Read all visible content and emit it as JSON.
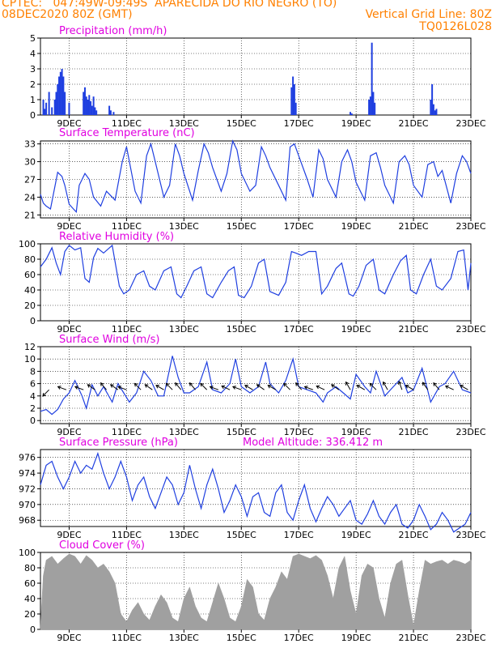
{
  "header": {
    "line1_left": "CPTEC:   047:49W-09:49S  APARECIDA DO RIO NEGRO (TO)",
    "line2_left": "08DEC2020 80Z (GMT)",
    "line2_right": "Vertical Grid Line: 80Z",
    "line3_right": "TQ0126L028"
  },
  "colors": {
    "header": "#ff8000",
    "title": "#e000e0",
    "series": "#1f3fe0",
    "cloud": "#a0a0a0"
  },
  "x_axis": {
    "start_day": 8.0,
    "end_day": 23.0,
    "tick_days": [
      9,
      11,
      13,
      15,
      17,
      19,
      21,
      23
    ],
    "tick_labels": [
      "9DEC",
      "11DEC",
      "13DEC",
      "15DEC",
      "17DEC",
      "19DEC",
      "21DEC",
      "23DEC"
    ]
  },
  "chart_data": [
    {
      "id": "precip",
      "type": "bar",
      "title": "Precipitation  (mm/h)",
      "ylim": [
        0,
        5
      ],
      "yticks": [
        0,
        1,
        2,
        3,
        4,
        5
      ],
      "x_days": [
        8.1,
        8.15,
        8.2,
        8.3,
        8.4,
        8.5,
        8.55,
        8.6,
        8.65,
        8.7,
        8.75,
        8.8,
        8.85,
        9.0,
        9.5,
        9.55,
        9.6,
        9.65,
        9.7,
        9.75,
        9.8,
        9.85,
        9.9,
        9.95,
        10.4,
        10.45,
        10.55,
        16.75,
        16.8,
        16.85,
        16.9,
        18.8,
        18.85,
        19.45,
        19.5,
        19.55,
        19.6,
        19.65,
        21.6,
        21.65,
        21.7,
        21.75,
        21.8
      ],
      "values": [
        1.0,
        0.4,
        0.8,
        1.5,
        0.5,
        1.0,
        1.5,
        2.0,
        2.5,
        2.8,
        3.0,
        2.5,
        1.5,
        0.8,
        1.5,
        1.8,
        1.2,
        1.0,
        1.3,
        0.9,
        0.6,
        1.2,
        0.5,
        0.3,
        0.6,
        0.3,
        0.2,
        1.8,
        2.5,
        2.0,
        0.8,
        0.2,
        0.1,
        1.0,
        1.2,
        4.7,
        1.5,
        0.8,
        1.0,
        2.0,
        0.7,
        0.3,
        0.4
      ]
    },
    {
      "id": "temp",
      "type": "line",
      "title": "Surface Temperature  (nC)",
      "ylim": [
        20.5,
        33.5
      ],
      "yticks": [
        21,
        24,
        27,
        30,
        33
      ],
      "x_days": [
        8.0,
        8.1,
        8.2,
        8.35,
        8.6,
        8.75,
        8.85,
        9.0,
        9.15,
        9.25,
        9.35,
        9.55,
        9.7,
        9.85,
        10.1,
        10.3,
        10.6,
        10.85,
        11.0,
        11.3,
        11.5,
        11.7,
        11.85,
        12.0,
        12.3,
        12.5,
        12.7,
        12.85,
        13.0,
        13.3,
        13.5,
        13.7,
        13.85,
        14.0,
        14.3,
        14.5,
        14.7,
        14.85,
        15.0,
        15.3,
        15.5,
        15.7,
        15.85,
        16.0,
        16.3,
        16.55,
        16.7,
        16.85,
        17.0,
        17.3,
        17.5,
        17.7,
        17.85,
        18.0,
        18.3,
        18.5,
        18.7,
        18.85,
        19.0,
        19.3,
        19.5,
        19.7,
        19.85,
        20.0,
        20.3,
        20.5,
        20.7,
        20.85,
        21.0,
        21.3,
        21.5,
        21.7,
        21.85,
        22.0,
        22.3,
        22.5,
        22.7,
        22.85,
        23.0
      ],
      "values": [
        24.5,
        23.0,
        22.5,
        22.0,
        28.2,
        27.5,
        26.0,
        22.8,
        22.0,
        21.5,
        26.0,
        28.0,
        27.0,
        24.0,
        22.5,
        25.0,
        23.5,
        30.0,
        32.5,
        25.0,
        23.0,
        31.0,
        33.0,
        30.0,
        24.0,
        26.0,
        33.0,
        31.0,
        28.0,
        23.5,
        28.5,
        33.0,
        31.5,
        29.0,
        25.0,
        28.0,
        33.5,
        32.0,
        28.0,
        25.0,
        26.0,
        32.5,
        31.0,
        29.0,
        26.0,
        23.5,
        32.5,
        33.0,
        31.0,
        27.0,
        24.0,
        32.0,
        30.5,
        27.0,
        24.0,
        30.0,
        32.0,
        30.0,
        26.5,
        23.5,
        31.0,
        31.5,
        29.0,
        26.0,
        23.0,
        30.0,
        31.0,
        29.5,
        26.0,
        24.0,
        29.5,
        30.0,
        27.5,
        28.5,
        23.0,
        28.0,
        31.0,
        30.0,
        28.0
      ]
    },
    {
      "id": "rh",
      "type": "line",
      "title": "Relative Humidity  (%)",
      "ylim": [
        0,
        100
      ],
      "yticks": [
        0,
        20,
        40,
        60,
        80,
        100
      ],
      "x_days": [
        8.0,
        8.2,
        8.4,
        8.55,
        8.7,
        8.85,
        9.0,
        9.2,
        9.4,
        9.55,
        9.7,
        9.85,
        10.0,
        10.2,
        10.5,
        10.75,
        10.9,
        11.1,
        11.35,
        11.6,
        11.8,
        12.0,
        12.3,
        12.55,
        12.75,
        12.9,
        13.1,
        13.35,
        13.6,
        13.8,
        14.0,
        14.3,
        14.55,
        14.75,
        14.9,
        15.1,
        15.35,
        15.6,
        15.8,
        16.0,
        16.3,
        16.55,
        16.75,
        16.9,
        17.1,
        17.35,
        17.6,
        17.8,
        18.0,
        18.3,
        18.5,
        18.75,
        18.9,
        19.1,
        19.35,
        19.6,
        19.8,
        20.0,
        20.3,
        20.55,
        20.75,
        20.9,
        21.1,
        21.35,
        21.6,
        21.8,
        22.0,
        22.3,
        22.55,
        22.75,
        22.9,
        23.0
      ],
      "values": [
        70,
        80,
        95,
        75,
        60,
        90,
        98,
        92,
        95,
        55,
        50,
        82,
        94,
        88,
        98,
        45,
        35,
        40,
        60,
        65,
        45,
        40,
        65,
        70,
        35,
        30,
        45,
        65,
        70,
        35,
        30,
        50,
        65,
        70,
        33,
        30,
        45,
        75,
        80,
        38,
        33,
        50,
        90,
        88,
        85,
        90,
        90,
        35,
        45,
        68,
        75,
        35,
        32,
        45,
        72,
        80,
        40,
        35,
        60,
        78,
        85,
        40,
        35,
        60,
        80,
        45,
        40,
        55,
        90,
        92,
        40,
        75
      ]
    },
    {
      "id": "wind",
      "type": "line",
      "title": "Surface Wind  (m/s)",
      "ylim": [
        -0.5,
        12
      ],
      "yticks": [
        0,
        2,
        4,
        6,
        8,
        10,
        12
      ],
      "x_days": [
        8.0,
        8.2,
        8.4,
        8.6,
        8.8,
        9.0,
        9.2,
        9.45,
        9.6,
        9.8,
        10.0,
        10.2,
        10.5,
        10.7,
        10.9,
        11.1,
        11.35,
        11.6,
        11.85,
        12.1,
        12.3,
        12.6,
        12.8,
        13.0,
        13.2,
        13.5,
        13.8,
        14.0,
        14.3,
        14.6,
        14.8,
        15.0,
        15.3,
        15.6,
        15.85,
        16.0,
        16.3,
        16.55,
        16.8,
        17.0,
        17.3,
        17.6,
        17.85,
        18.0,
        18.3,
        18.55,
        18.8,
        19.0,
        19.3,
        19.5,
        19.7,
        20.0,
        20.3,
        20.6,
        20.8,
        21.0,
        21.3,
        21.6,
        21.9,
        22.1,
        22.4,
        22.7,
        23.0
      ],
      "values": [
        1.5,
        1.8,
        1.0,
        1.8,
        3.5,
        4.5,
        6.5,
        4.0,
        2.0,
        5.8,
        4.0,
        5.5,
        3.0,
        6.0,
        4.5,
        3.0,
        4.5,
        8.0,
        6.5,
        4.0,
        4.0,
        10.5,
        7.0,
        4.5,
        4.5,
        5.5,
        9.5,
        5.0,
        4.5,
        6.0,
        10.0,
        5.5,
        4.5,
        5.5,
        9.5,
        6.0,
        4.5,
        6.5,
        10.0,
        5.5,
        5.0,
        4.5,
        3.0,
        4.5,
        5.5,
        4.5,
        3.5,
        7.5,
        5.5,
        4.5,
        8.0,
        4.0,
        5.5,
        7.0,
        4.5,
        5.0,
        8.5,
        3.0,
        5.5,
        6.0,
        8.0,
        5.0,
        4.5
      ],
      "arrows_days": [
        8.3,
        8.9,
        9.5,
        9.9,
        10.3,
        10.7,
        11.0,
        11.5,
        11.9,
        12.3,
        12.6,
        12.9,
        13.4,
        13.8,
        14.2,
        14.6,
        15.0,
        15.4,
        15.8,
        16.2,
        16.7,
        17.1,
        17.5,
        17.9,
        18.4,
        18.8,
        19.3,
        19.7,
        20.1,
        20.6,
        21.0,
        21.5,
        21.9,
        22.4,
        22.9
      ],
      "arrows_dir_deg": [
        135,
        200,
        200,
        215,
        230,
        215,
        200,
        225,
        215,
        210,
        225,
        230,
        230,
        225,
        200,
        205,
        200,
        210,
        215,
        210,
        225,
        230,
        200,
        205,
        215,
        240,
        210,
        225,
        240,
        250,
        210,
        235,
        230,
        205,
        210
      ]
    },
    {
      "id": "pressure",
      "type": "line",
      "title": "Surface Pressure  (hPa)",
      "title_right": "Model Altitude: 336.412  m",
      "ylim": [
        967.2,
        977
      ],
      "yticks": [
        968,
        970,
        972,
        974,
        976
      ],
      "x_days": [
        8.0,
        8.2,
        8.4,
        8.6,
        8.8,
        9.0,
        9.2,
        9.4,
        9.6,
        9.8,
        10.0,
        10.2,
        10.4,
        10.6,
        10.8,
        11.0,
        11.2,
        11.4,
        11.6,
        11.8,
        12.0,
        12.2,
        12.4,
        12.6,
        12.8,
        13.0,
        13.2,
        13.4,
        13.6,
        13.8,
        14.0,
        14.2,
        14.4,
        14.6,
        14.8,
        15.0,
        15.2,
        15.4,
        15.6,
        15.8,
        16.0,
        16.2,
        16.4,
        16.6,
        16.8,
        17.0,
        17.2,
        17.4,
        17.6,
        17.8,
        18.0,
        18.2,
        18.4,
        18.6,
        18.8,
        19.0,
        19.2,
        19.4,
        19.6,
        19.8,
        20.0,
        20.2,
        20.4,
        20.6,
        20.8,
        21.0,
        21.2,
        21.4,
        21.6,
        21.8,
        22.0,
        22.2,
        22.4,
        22.6,
        22.8,
        23.0
      ],
      "values": [
        972.5,
        975.0,
        975.5,
        973.5,
        972.0,
        973.5,
        975.5,
        974.0,
        975.0,
        974.5,
        976.5,
        974.0,
        972.0,
        973.5,
        975.5,
        973.5,
        970.5,
        972.5,
        973.5,
        971.0,
        969.5,
        971.5,
        973.5,
        972.5,
        970.0,
        971.5,
        975.0,
        972.0,
        969.5,
        972.5,
        974.5,
        972.0,
        969.0,
        970.5,
        972.5,
        971.0,
        968.5,
        971.0,
        971.5,
        969.0,
        968.5,
        971.5,
        972.5,
        969.0,
        968.0,
        970.5,
        972.5,
        969.5,
        967.8,
        969.5,
        971.0,
        970.0,
        968.5,
        969.5,
        970.5,
        968.0,
        967.5,
        968.8,
        970.5,
        968.5,
        967.5,
        969.0,
        970.0,
        967.5,
        967.0,
        968.0,
        970.0,
        968.5,
        966.8,
        967.5,
        969.0,
        968.0,
        966.5,
        967.0,
        967.5,
        969.0
      ]
    },
    {
      "id": "cloud",
      "type": "area",
      "title": "Cloud Cover  (%)",
      "ylim": [
        0,
        100
      ],
      "yticks": [
        0,
        20,
        40,
        60,
        80,
        100
      ],
      "x_days": [
        8.0,
        8.1,
        8.2,
        8.4,
        8.6,
        8.8,
        9.0,
        9.2,
        9.4,
        9.6,
        9.8,
        10.0,
        10.2,
        10.4,
        10.6,
        10.8,
        11.0,
        11.2,
        11.4,
        11.6,
        11.8,
        12.0,
        12.2,
        12.4,
        12.6,
        12.8,
        13.0,
        13.2,
        13.4,
        13.6,
        13.8,
        14.0,
        14.2,
        14.4,
        14.6,
        14.8,
        15.0,
        15.2,
        15.4,
        15.6,
        15.8,
        16.0,
        16.2,
        16.4,
        16.6,
        16.8,
        17.0,
        17.2,
        17.4,
        17.6,
        17.8,
        18.0,
        18.2,
        18.4,
        18.6,
        18.8,
        19.0,
        19.2,
        19.4,
        19.6,
        19.8,
        20.0,
        20.2,
        20.4,
        20.6,
        20.8,
        21.0,
        21.2,
        21.4,
        21.6,
        21.8,
        22.0,
        22.2,
        22.4,
        22.6,
        22.8,
        23.0
      ],
      "values": [
        5,
        70,
        90,
        95,
        85,
        92,
        98,
        95,
        85,
        96,
        90,
        80,
        85,
        75,
        60,
        20,
        10,
        25,
        35,
        20,
        12,
        30,
        45,
        35,
        15,
        10,
        40,
        55,
        30,
        15,
        10,
        35,
        60,
        40,
        15,
        10,
        30,
        65,
        55,
        20,
        12,
        40,
        55,
        75,
        65,
        95,
        98,
        95,
        92,
        96,
        90,
        70,
        40,
        80,
        95,
        50,
        20,
        70,
        85,
        80,
        40,
        15,
        60,
        85,
        90,
        45,
        5,
        50,
        90,
        85,
        88,
        90,
        85,
        90,
        88,
        85,
        90
      ]
    }
  ]
}
